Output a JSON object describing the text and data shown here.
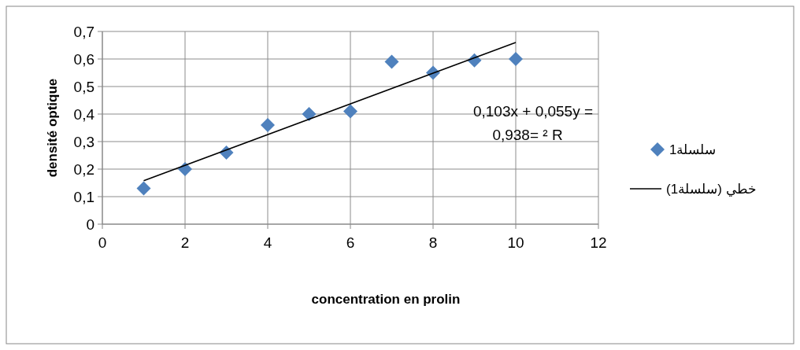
{
  "chart_data": {
    "type": "scatter",
    "xlabel": "concentration en  prolin",
    "ylabel": "densité optique",
    "xlim": [
      0,
      12
    ],
    "xticks": [
      0,
      2,
      4,
      6,
      8,
      10,
      12
    ],
    "ylim": [
      0,
      0.7
    ],
    "yticks": [
      {
        "value": 0,
        "label": "0"
      },
      {
        "value": 0.1,
        "label": "0,1"
      },
      {
        "value": 0.2,
        "label": "0,2"
      },
      {
        "value": 0.3,
        "label": "0,3"
      },
      {
        "value": 0.4,
        "label": "0,4"
      },
      {
        "value": 0.5,
        "label": "0,5"
      },
      {
        "value": 0.6,
        "label": "0,6"
      },
      {
        "value": 0.7,
        "label": "0,7"
      }
    ],
    "grid": true,
    "legend": "right",
    "series": [
      {
        "name": "سلسلة1",
        "color": "#4f81bd",
        "marker": "diamond",
        "x": [
          1,
          2,
          3,
          4,
          5,
          6,
          7,
          8,
          9,
          10
        ],
        "values": [
          0.13,
          0.2,
          0.26,
          0.36,
          0.4,
          0.41,
          0.59,
          0.55,
          0.595,
          0.6
        ]
      },
      {
        "name": "خطي (سلسلة1)",
        "type": "line",
        "color": "#000000",
        "x": [
          1,
          10
        ],
        "values": [
          0.158,
          0.66
        ]
      }
    ],
    "annotations": [
      "0,103x + 0,055y =",
      "0,938= ² R"
    ]
  }
}
